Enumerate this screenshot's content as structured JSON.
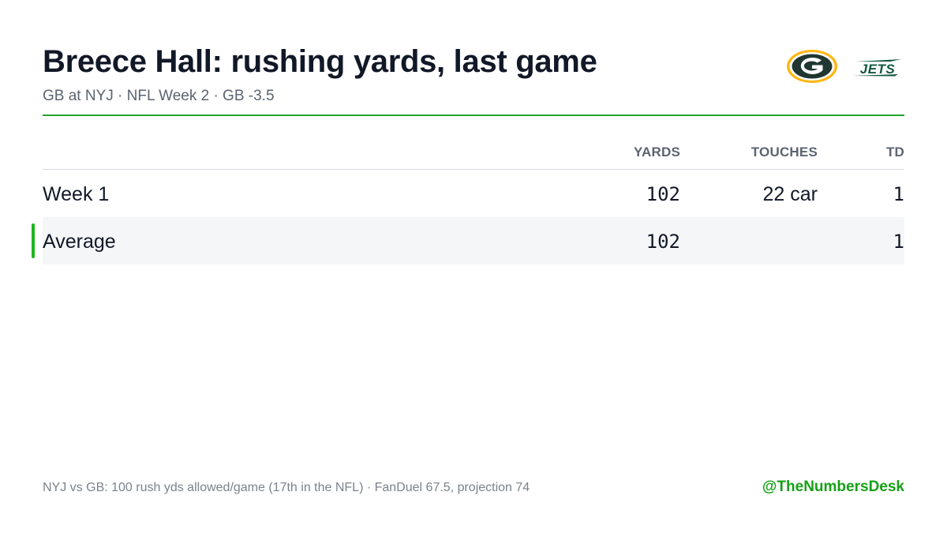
{
  "header": {
    "title": "Breece Hall: rushing yards, last game",
    "subtitle": "GB at NYJ · NFL Week 2 · GB -3.5",
    "logos": [
      {
        "name": "green-bay-packers-logo",
        "text": "G",
        "colors": [
          "#203731",
          "#FFB612",
          "#ffffff"
        ]
      },
      {
        "name": "new-york-jets-logo",
        "text": "JETS",
        "colors": [
          "#125740",
          "#ffffff"
        ]
      }
    ]
  },
  "colors": {
    "accent": "#22a52a",
    "handle": "#16a016",
    "row_highlight": "#f5f6f8",
    "title_text": "#111827",
    "muted_text": "#5b6470"
  },
  "table": {
    "columns": [
      "YARDS",
      "TOUCHES",
      "TD"
    ],
    "rows": [
      {
        "label": "Week 1",
        "yards": "102",
        "touches": "22 car",
        "td": "1",
        "highlighted": false
      },
      {
        "label": "Average",
        "yards": "102",
        "touches": "",
        "td": "1",
        "highlighted": true
      }
    ]
  },
  "footer": {
    "note": "NYJ vs GB: 100 rush yds allowed/game (17th in the NFL) · FanDuel 67.5, projection 74",
    "handle": "@TheNumbersDesk"
  }
}
